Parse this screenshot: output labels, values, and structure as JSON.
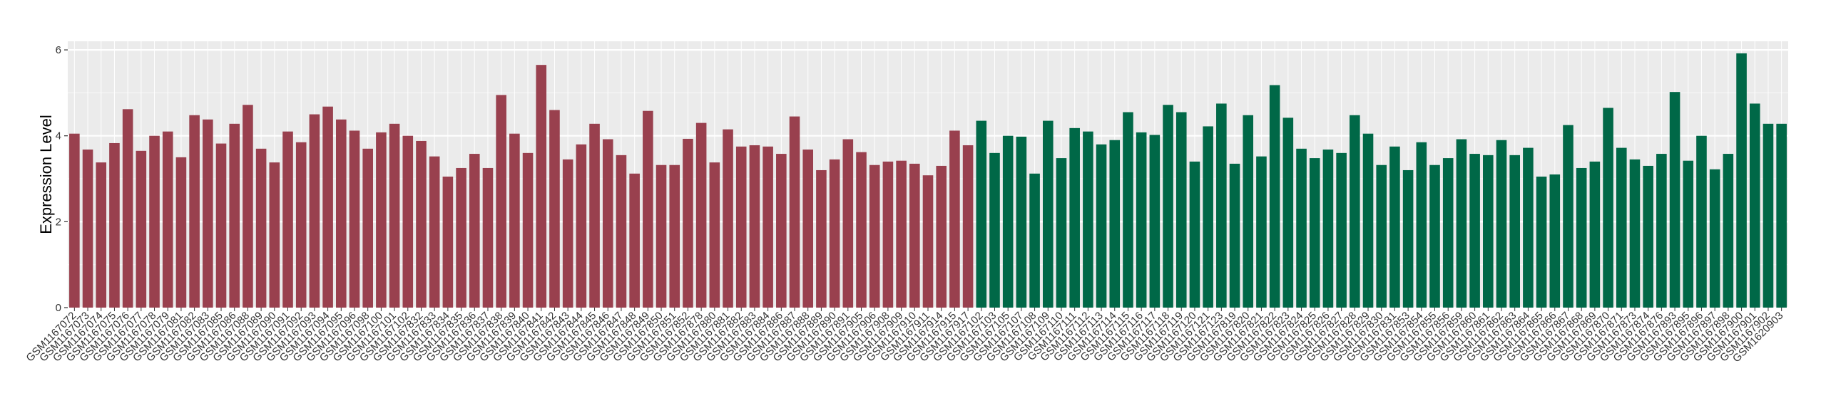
{
  "chart_data": {
    "type": "bar",
    "title": "",
    "xlabel": "",
    "ylabel": "Expression Level",
    "ylim": [
      0,
      6.2
    ],
    "yticks": [
      0,
      2,
      4,
      6
    ],
    "ytick_labels": [
      "0",
      "2",
      "4",
      "6"
    ],
    "grid": true,
    "legend": "none",
    "colors": {
      "panel_background": "#ebebeb",
      "grid_major": "#ffffff",
      "grid_minor": "#f5f5f5",
      "group_1": "#99404e",
      "group_2": "#006847"
    },
    "categories": [
      "GSM1167072",
      "GSM1167073",
      "GSM1167074",
      "GSM1167075",
      "GSM1167076",
      "GSM1167077",
      "GSM1167078",
      "GSM1167079",
      "GSM1167081",
      "GSM1167082",
      "GSM1167083",
      "GSM1167085",
      "GSM1167086",
      "GSM1167088",
      "GSM1167089",
      "GSM1167090",
      "GSM1167091",
      "GSM1167092",
      "GSM1167093",
      "GSM1167094",
      "GSM1167095",
      "GSM1167096",
      "GSM1167098",
      "GSM1167100",
      "GSM1167101",
      "GSM1167102",
      "GSM1167832",
      "GSM1167833",
      "GSM1167834",
      "GSM1167835",
      "GSM1167836",
      "GSM1167837",
      "GSM1167838",
      "GSM1167839",
      "GSM1167840",
      "GSM1167841",
      "GSM1167842",
      "GSM1167843",
      "GSM1167844",
      "GSM1167845",
      "GSM1167846",
      "GSM1167847",
      "GSM1167848",
      "GSM1167849",
      "GSM1167850",
      "GSM1167851",
      "GSM1167852",
      "GSM1167878",
      "GSM1167880",
      "GSM1167881",
      "GSM1167882",
      "GSM1167883",
      "GSM1167884",
      "GSM1167886",
      "GSM1167887",
      "GSM1167888",
      "GSM1167889",
      "GSM1167890",
      "GSM1167891",
      "GSM1167905",
      "GSM1167906",
      "GSM1167908",
      "GSM1167909",
      "GSM1167910",
      "GSM1167911",
      "GSM1167914",
      "GSM1167915",
      "GSM1167917",
      "GSM1167102",
      "GSM1167103",
      "GSM1167105",
      "GSM1167107",
      "GSM1167108",
      "GSM1167109",
      "GSM1167110",
      "GSM1167111",
      "GSM1167112",
      "GSM1167113",
      "GSM1167114",
      "GSM1167115",
      "GSM1167116",
      "GSM1167117",
      "GSM1167118",
      "GSM1167119",
      "GSM1167120",
      "GSM1167121",
      "GSM1167123",
      "GSM1167819",
      "GSM1167820",
      "GSM1167821",
      "GSM1167822",
      "GSM1167823",
      "GSM1167824",
      "GSM1167825",
      "GSM1167826",
      "GSM1167827",
      "GSM1167828",
      "GSM1167829",
      "GSM1167830",
      "GSM1167831",
      "GSM1167853",
      "GSM1167854",
      "GSM1167855",
      "GSM1167856",
      "GSM1167859",
      "GSM1167860",
      "GSM1167861",
      "GSM1167862",
      "GSM1167863",
      "GSM1167864",
      "GSM1167865",
      "GSM1167866",
      "GSM1167867",
      "GSM1167868",
      "GSM1167869",
      "GSM1167870",
      "GSM1167871",
      "GSM1167873",
      "GSM1167874",
      "GSM1167876",
      "GSM1167893",
      "GSM1167895",
      "GSM1167896",
      "GSM1167897",
      "GSM1167898",
      "GSM1167900",
      "GSM1167901",
      "GSM1167902",
      "GSM1620903"
    ],
    "values": [
      4.05,
      3.68,
      3.38,
      3.83,
      4.62,
      3.65,
      4.0,
      4.1,
      3.5,
      4.48,
      4.38,
      3.82,
      4.28,
      4.72,
      3.7,
      3.38,
      4.1,
      3.85,
      4.5,
      4.68,
      4.38,
      4.12,
      3.7,
      4.08,
      4.28,
      4.0,
      3.88,
      3.52,
      3.05,
      3.25,
      3.58,
      3.25,
      4.95,
      4.05,
      3.6,
      5.65,
      4.6,
      3.45,
      3.8,
      4.28,
      3.92,
      3.55,
      3.12,
      4.58,
      3.32,
      3.32,
      3.93,
      4.3,
      3.38,
      4.15,
      3.75,
      3.78,
      3.75,
      3.58,
      4.45,
      3.68,
      3.2,
      3.45,
      3.92,
      3.62,
      3.32,
      3.4,
      3.42,
      3.35,
      3.08,
      3.3,
      4.12,
      3.78,
      4.35,
      3.6,
      4.0,
      3.98,
      3.12,
      4.35,
      3.48,
      4.18,
      4.1,
      3.8,
      3.9,
      4.55,
      4.08,
      4.02,
      4.72,
      4.55,
      3.4,
      4.22,
      4.75,
      3.35,
      4.48,
      3.52,
      5.18,
      4.42,
      3.7,
      3.48,
      3.68,
      3.6,
      4.48,
      4.05,
      3.32,
      3.75,
      3.2,
      3.85,
      3.32,
      3.48,
      3.92,
      3.58,
      3.55,
      3.9,
      3.55,
      3.72,
      3.05,
      3.1,
      4.25,
      3.25,
      3.4,
      4.65,
      3.72,
      3.45,
      3.3,
      3.58,
      5.02,
      3.42,
      4.0,
      3.22,
      3.58,
      5.92,
      4.75,
      4.28,
      4.28
    ],
    "group_split_index": 68
  }
}
